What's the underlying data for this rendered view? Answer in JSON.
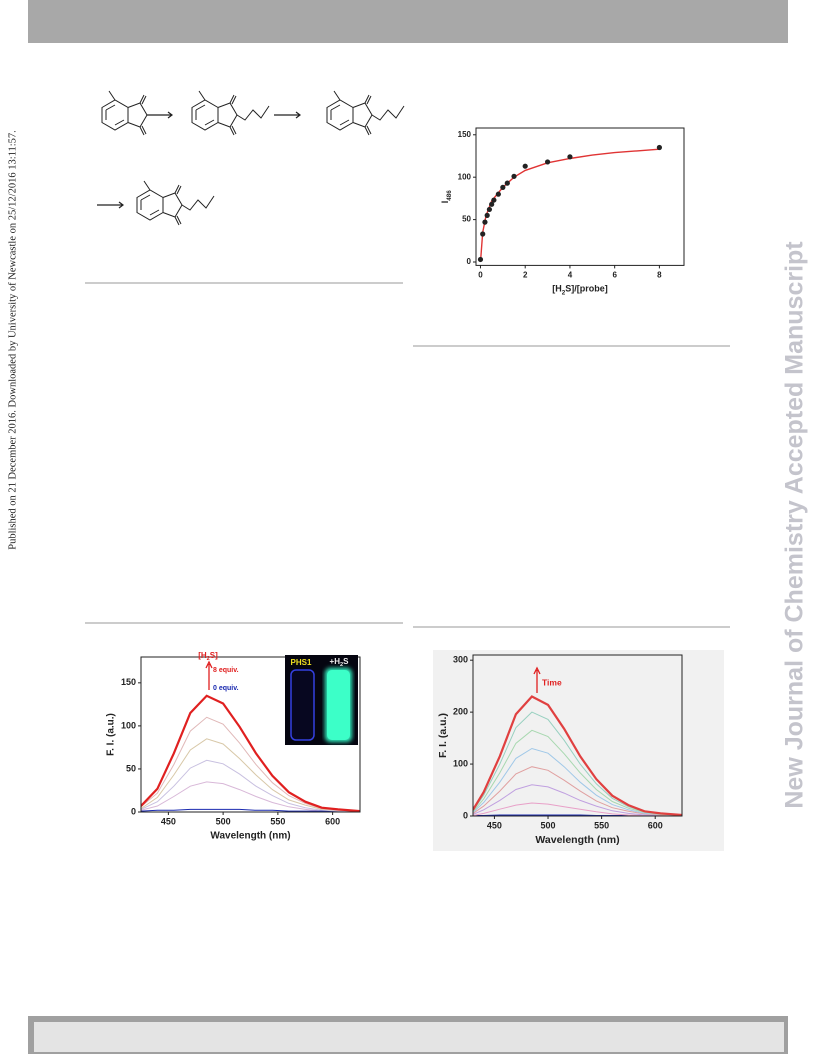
{
  "page": {
    "side_note": "Published on 21 December 2016. Downloaded by University of Newcastle on 25/12/2016 13:11:57.",
    "watermark": "New Journal of Chemistry Accepted Manuscript"
  },
  "chart_data": [
    {
      "type": "scatter",
      "x_label": {
        "pre": "[H",
        "sub": "2",
        "post": "S]/[probe]"
      },
      "y_label": {
        "pre": "I",
        "sub": "486"
      },
      "xlim": [
        -0.2,
        9.1
      ],
      "ylim": [
        -4,
        158
      ],
      "xticks": [
        0,
        2,
        4,
        6,
        8
      ],
      "yticks": [
        0,
        50,
        100,
        150
      ],
      "series": [
        {
          "color": "#e03434",
          "line": true,
          "x": [
            0,
            0.1,
            0.25,
            0.5,
            1,
            1.5,
            2,
            3,
            4,
            5,
            6,
            7,
            8
          ],
          "values": [
            0,
            35,
            55,
            72,
            88,
            100,
            108,
            117,
            122,
            126,
            129,
            131,
            133
          ]
        },
        {
          "color": "#222222",
          "x": [
            0,
            0.1,
            0.2,
            0.3,
            0.4,
            0.5,
            0.6,
            0.8,
            1,
            1.2,
            1.5,
            2,
            3,
            4,
            8
          ],
          "values": [
            3,
            33,
            47,
            55,
            62,
            68,
            73,
            80,
            88,
            93,
            101,
            113,
            118,
            124,
            135
          ]
        }
      ]
    },
    {
      "type": "line",
      "x_label": "Wavelength (nm)",
      "y_label": "F. I. (a.u.)",
      "xlim": [
        425,
        625
      ],
      "ylim": [
        0,
        180
      ],
      "xticks": [
        450,
        500,
        550,
        600
      ],
      "yticks": [
        0,
        50,
        100,
        150
      ],
      "annotations": {
        "h2s": {
          "pre": "[H",
          "sub": "2",
          "post": "S]"
        },
        "high": "8  equiv.",
        "low": "0  equiv."
      },
      "inset": {
        "left": "PHS1",
        "right": {
          "pre": "+H",
          "sub": "2",
          "post": "S"
        }
      },
      "series": [
        {
          "color": "#d8b8d8",
          "x": [
            425,
            440,
            455,
            470,
            485,
            500,
            515,
            530,
            545,
            560,
            575,
            590,
            605,
            625
          ],
          "values": [
            2,
            7,
            18,
            30,
            35,
            33,
            26,
            18,
            11,
            6,
            3,
            1,
            1,
            0
          ]
        },
        {
          "color": "#c8c0e0",
          "x": [
            425,
            440,
            455,
            470,
            485,
            500,
            515,
            530,
            545,
            560,
            575,
            590,
            605,
            625
          ],
          "values": [
            3,
            12,
            30,
            51,
            60,
            56,
            44,
            30,
            19,
            10,
            5,
            2,
            1,
            1
          ]
        },
        {
          "color": "#d8c8a8",
          "x": [
            425,
            440,
            455,
            470,
            485,
            500,
            515,
            530,
            545,
            560,
            575,
            590,
            605,
            625
          ],
          "values": [
            4,
            17,
            43,
            72,
            85,
            79,
            62,
            43,
            26,
            14,
            8,
            3,
            2,
            1
          ]
        },
        {
          "color": "#e0b8b8",
          "x": [
            425,
            440,
            455,
            470,
            485,
            500,
            515,
            530,
            545,
            560,
            575,
            590,
            605,
            625
          ],
          "values": [
            6,
            22,
            55,
            94,
            110,
            102,
            80,
            55,
            34,
            19,
            10,
            4,
            2,
            1
          ]
        },
        {
          "color": "#e02020",
          "x": [
            425,
            440,
            455,
            470,
            485,
            500,
            515,
            530,
            545,
            560,
            575,
            590,
            605,
            625
          ],
          "values": [
            7,
            27,
            68,
            115,
            135,
            126,
            99,
            68,
            42,
            23,
            12,
            5,
            3,
            1
          ]
        },
        {
          "color": "#1a2ab0",
          "x": [
            425,
            440,
            455,
            470,
            485,
            500,
            515,
            530,
            545,
            560,
            575,
            590,
            605,
            625
          ],
          "values": [
            1,
            2,
            2,
            3,
            3,
            3,
            3,
            2,
            2,
            1,
            1,
            1,
            0,
            0
          ]
        }
      ]
    },
    {
      "type": "line",
      "background": "#f1f1f1",
      "x_label": "Wavelength (nm)",
      "y_label": "F. I. (a.u.)",
      "xlim": [
        430,
        625
      ],
      "ylim": [
        0,
        310
      ],
      "xticks": [
        450,
        500,
        550,
        600
      ],
      "yticks": [
        0,
        100,
        200,
        300
      ],
      "annotations": {
        "time": "Time"
      },
      "series": [
        {
          "color": "#1a2ab0",
          "x": [
            430,
            440,
            455,
            470,
            485,
            500,
            515,
            530,
            545,
            560,
            575,
            590,
            605,
            625
          ],
          "values": [
            1,
            1,
            2,
            2,
            2,
            2,
            2,
            2,
            1,
            1,
            1,
            0,
            0,
            0
          ]
        },
        {
          "color": "#e8a0c8",
          "x": [
            430,
            440,
            455,
            470,
            485,
            500,
            515,
            530,
            545,
            560,
            575,
            590,
            605,
            625
          ],
          "values": [
            1,
            5,
            13,
            21,
            25,
            23,
            18,
            13,
            8,
            4,
            2,
            1,
            1,
            0
          ]
        },
        {
          "color": "#c0a0e0",
          "x": [
            430,
            440,
            455,
            470,
            485,
            500,
            515,
            530,
            545,
            560,
            575,
            590,
            605,
            625
          ],
          "values": [
            3,
            12,
            30,
            51,
            60,
            56,
            44,
            30,
            19,
            10,
            5,
            2,
            1,
            1
          ]
        },
        {
          "color": "#e0a0a0",
          "x": [
            430,
            440,
            455,
            470,
            485,
            500,
            515,
            530,
            545,
            560,
            575,
            590,
            605,
            625
          ],
          "values": [
            5,
            19,
            48,
            81,
            95,
            88,
            69,
            48,
            29,
            16,
            9,
            4,
            2,
            1
          ]
        },
        {
          "color": "#a0c8e8",
          "x": [
            430,
            440,
            455,
            470,
            485,
            500,
            515,
            530,
            545,
            560,
            575,
            590,
            605,
            625
          ],
          "values": [
            7,
            26,
            65,
            111,
            130,
            121,
            95,
            65,
            40,
            22,
            12,
            5,
            3,
            1
          ]
        },
        {
          "color": "#a8d8b0",
          "x": [
            430,
            440,
            455,
            470,
            485,
            500,
            515,
            530,
            545,
            560,
            575,
            590,
            605,
            625
          ],
          "values": [
            8,
            33,
            83,
            140,
            165,
            153,
            120,
            83,
            51,
            28,
            15,
            7,
            3,
            2
          ]
        },
        {
          "color": "#98d0c0",
          "x": [
            430,
            440,
            455,
            470,
            485,
            500,
            515,
            530,
            545,
            560,
            575,
            590,
            605,
            625
          ],
          "values": [
            10,
            40,
            100,
            170,
            200,
            186,
            146,
            100,
            62,
            34,
            18,
            8,
            4,
            2
          ]
        },
        {
          "color": "#e04040",
          "x": [
            430,
            440,
            455,
            470,
            485,
            500,
            515,
            530,
            545,
            560,
            575,
            590,
            605,
            625
          ],
          "values": [
            12,
            46,
            115,
            196,
            230,
            214,
            168,
            115,
            71,
            39,
            21,
            9,
            5,
            2
          ]
        }
      ]
    }
  ]
}
